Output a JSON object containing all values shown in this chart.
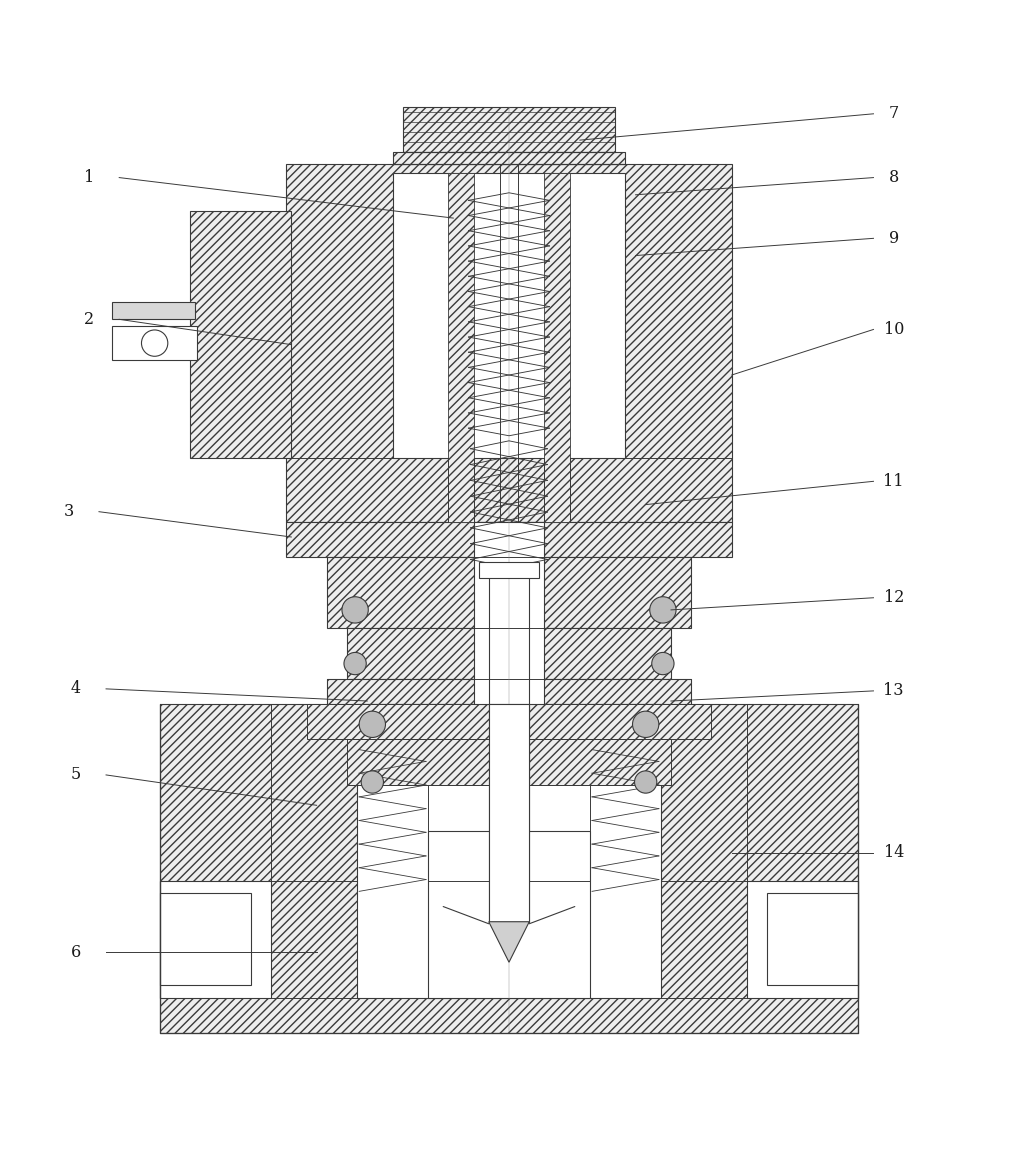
{
  "background_color": "#ffffff",
  "line_color": "#3a3a3a",
  "label_color": "#1a1a1a",
  "fig_width": 10.18,
  "fig_height": 11.55,
  "hatch": "////",
  "lw": 0.8,
  "leader_lines": {
    "1": {
      "lp": [
        0.085,
        0.895
      ],
      "p1": [
        0.115,
        0.895
      ],
      "p2": [
        0.445,
        0.855
      ]
    },
    "2": {
      "lp": [
        0.085,
        0.755
      ],
      "p1": [
        0.115,
        0.755
      ],
      "p2": [
        0.285,
        0.73
      ]
    },
    "3": {
      "lp": [
        0.065,
        0.565
      ],
      "p1": [
        0.095,
        0.565
      ],
      "p2": [
        0.285,
        0.54
      ]
    },
    "4": {
      "lp": [
        0.072,
        0.39
      ],
      "p1": [
        0.102,
        0.39
      ],
      "p2": [
        0.36,
        0.378
      ]
    },
    "5": {
      "lp": [
        0.072,
        0.305
      ],
      "p1": [
        0.102,
        0.305
      ],
      "p2": [
        0.31,
        0.275
      ]
    },
    "6": {
      "lp": [
        0.072,
        0.13
      ],
      "p1": [
        0.102,
        0.13
      ],
      "p2": [
        0.31,
        0.13
      ]
    },
    "7": {
      "lp": [
        0.88,
        0.958
      ],
      "p1": [
        0.86,
        0.958
      ],
      "p2": [
        0.57,
        0.932
      ]
    },
    "8": {
      "lp": [
        0.88,
        0.895
      ],
      "p1": [
        0.86,
        0.895
      ],
      "p2": [
        0.625,
        0.878
      ]
    },
    "9": {
      "lp": [
        0.88,
        0.835
      ],
      "p1": [
        0.86,
        0.835
      ],
      "p2": [
        0.625,
        0.818
      ]
    },
    "10": {
      "lp": [
        0.88,
        0.745
      ],
      "p1": [
        0.86,
        0.745
      ],
      "p2": [
        0.72,
        0.7
      ]
    },
    "11": {
      "lp": [
        0.88,
        0.595
      ],
      "p1": [
        0.86,
        0.595
      ],
      "p2": [
        0.635,
        0.572
      ]
    },
    "12": {
      "lp": [
        0.88,
        0.48
      ],
      "p1": [
        0.86,
        0.48
      ],
      "p2": [
        0.66,
        0.468
      ]
    },
    "13": {
      "lp": [
        0.88,
        0.388
      ],
      "p1": [
        0.86,
        0.388
      ],
      "p2": [
        0.66,
        0.378
      ]
    },
    "14": {
      "lp": [
        0.88,
        0.228
      ],
      "p1": [
        0.86,
        0.228
      ],
      "p2": [
        0.72,
        0.228
      ]
    }
  }
}
